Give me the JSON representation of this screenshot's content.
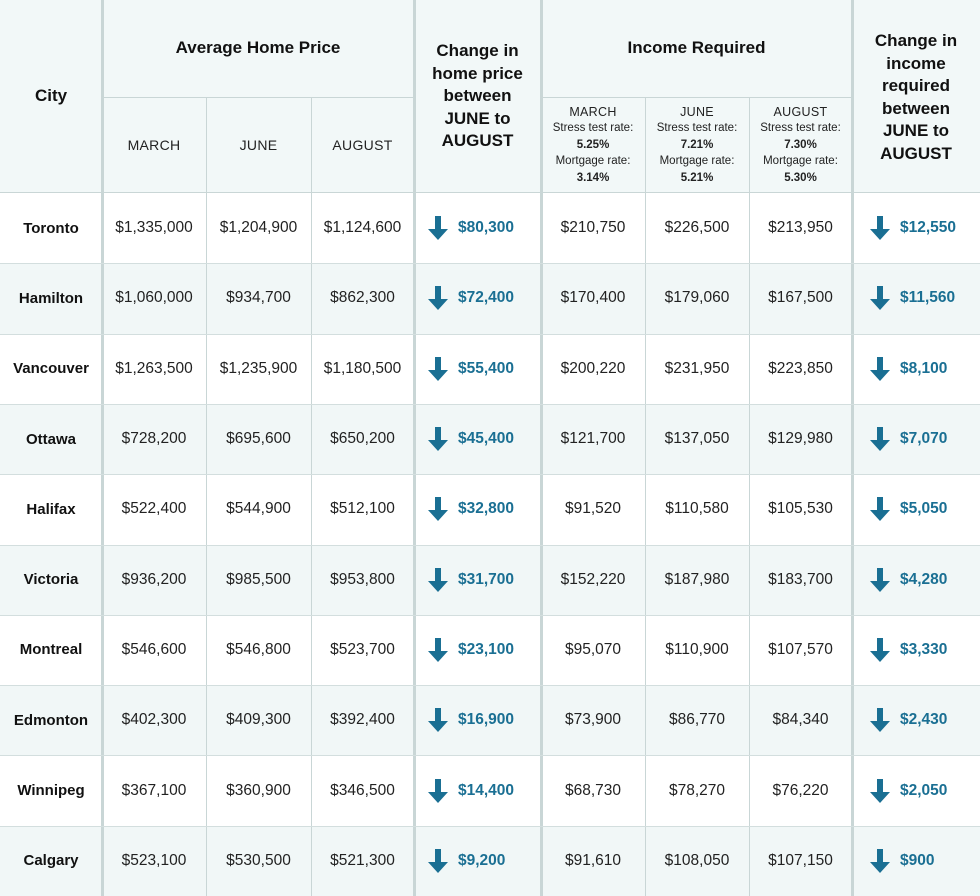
{
  "chart_data": {
    "type": "table",
    "headers": {
      "city": "City",
      "avg_price": "Average Home Price",
      "change_price": "Change in home price between JUNE to AUGUST",
      "income": "Income Required",
      "change_income": "Change in income required between JUNE to AUGUST",
      "months": [
        "MARCH",
        "JUNE",
        "AUGUST"
      ],
      "income_sub": [
        {
          "month": "MARCH",
          "stress_label": "Stress test rate:",
          "stress": "5.25%",
          "mortgage_label": "Mortgage rate:",
          "mortgage": "3.14%"
        },
        {
          "month": "JUNE",
          "stress_label": "Stress test rate:",
          "stress": "7.21%",
          "mortgage_label": "Mortgage rate:",
          "mortgage": "5.21%"
        },
        {
          "month": "AUGUST",
          "stress_label": "Stress test rate:",
          "stress": "7.30%",
          "mortgage_label": "Mortgage rate:",
          "mortgage": "5.30%"
        }
      ]
    },
    "rows": [
      {
        "city": "Toronto",
        "price": [
          "$1,335,000",
          "$1,204,900",
          "$1,124,600"
        ],
        "price_change": "$80,300",
        "income": [
          "$210,750",
          "$226,500",
          "$213,950"
        ],
        "income_change": "$12,550"
      },
      {
        "city": "Hamilton",
        "price": [
          "$1,060,000",
          "$934,700",
          "$862,300"
        ],
        "price_change": "$72,400",
        "income": [
          "$170,400",
          "$179,060",
          "$167,500"
        ],
        "income_change": "$11,560"
      },
      {
        "city": "Vancouver",
        "price": [
          "$1,263,500",
          "$1,235,900",
          "$1,180,500"
        ],
        "price_change": "$55,400",
        "income": [
          "$200,220",
          "$231,950",
          "$223,850"
        ],
        "income_change": "$8,100"
      },
      {
        "city": "Ottawa",
        "price": [
          "$728,200",
          "$695,600",
          "$650,200"
        ],
        "price_change": "$45,400",
        "income": [
          "$121,700",
          "$137,050",
          "$129,980"
        ],
        "income_change": "$7,070"
      },
      {
        "city": "Halifax",
        "price": [
          "$522,400",
          "$544,900",
          "$512,100"
        ],
        "price_change": "$32,800",
        "income": [
          "$91,520",
          "$110,580",
          "$105,530"
        ],
        "income_change": "$5,050"
      },
      {
        "city": "Victoria",
        "price": [
          "$936,200",
          "$985,500",
          "$953,800"
        ],
        "price_change": "$31,700",
        "income": [
          "$152,220",
          "$187,980",
          "$183,700"
        ],
        "income_change": "$4,280"
      },
      {
        "city": "Montreal",
        "price": [
          "$546,600",
          "$546,800",
          "$523,700"
        ],
        "price_change": "$23,100",
        "income": [
          "$95,070",
          "$110,900",
          "$107,570"
        ],
        "income_change": "$3,330"
      },
      {
        "city": "Edmonton",
        "price": [
          "$402,300",
          "$409,300",
          "$392,400"
        ],
        "price_change": "$16,900",
        "income": [
          "$73,900",
          "$86,770",
          "$84,340"
        ],
        "income_change": "$2,430"
      },
      {
        "city": "Winnipeg",
        "price": [
          "$367,100",
          "$360,900",
          "$346,500"
        ],
        "price_change": "$14,400",
        "income": [
          "$68,730",
          "$78,270",
          "$76,220"
        ],
        "income_change": "$2,050"
      },
      {
        "city": "Calgary",
        "price": [
          "$523,100",
          "$530,500",
          "$521,300"
        ],
        "price_change": "$9,200",
        "income": [
          "$91,610",
          "$108,050",
          "$107,150"
        ],
        "income_change": "$900"
      }
    ],
    "change_direction": "down",
    "colors": {
      "accent": "#1a6f93",
      "header_bg": "#f2f8f8",
      "alt_row_bg": "#f1f7f7",
      "grid": "#c9d6d6"
    },
    "icon": "arrow-down-icon"
  }
}
